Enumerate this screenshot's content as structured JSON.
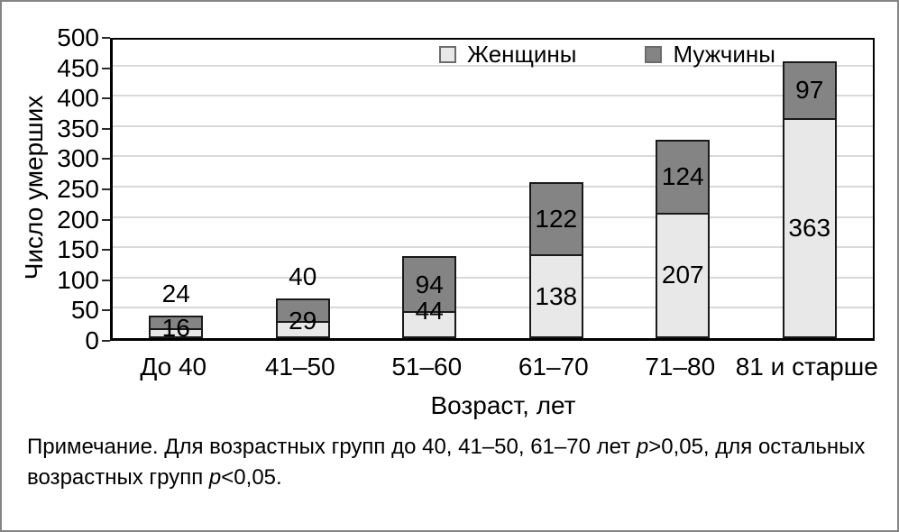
{
  "figure": {
    "note": {
      "line1_pre": "Примечание. Для возрастных групп до 40, 41–50, 61–70 лет ",
      "line1_italic": "p",
      "line1_post": ">0,05, для остальных",
      "line2_pre": "возрастных групп ",
      "line2_italic": "p",
      "line2_post": "<0,05."
    }
  },
  "chart_data": {
    "type": "bar",
    "stacked": true,
    "title": "",
    "categories": [
      "До 40",
      "41–50",
      "51–60",
      "61–70",
      "71–80",
      "81 и старше"
    ],
    "series": [
      {
        "name": "Женщины",
        "color": "#e8e8e8",
        "values": [
          16,
          29,
          44,
          138,
          207,
          363
        ]
      },
      {
        "name": "Мужчины",
        "color": "#848484",
        "values": [
          24,
          40,
          94,
          122,
          124,
          97
        ]
      }
    ],
    "xlabel": "Возраст, лет",
    "ylabel": "Число умерших",
    "ylim": [
      0,
      500
    ],
    "ytick_step": 50,
    "grid": true,
    "gridline_color": "#d9d9d9",
    "bar_border_color": "#1a1a1a",
    "legend_position": "top-inside"
  }
}
